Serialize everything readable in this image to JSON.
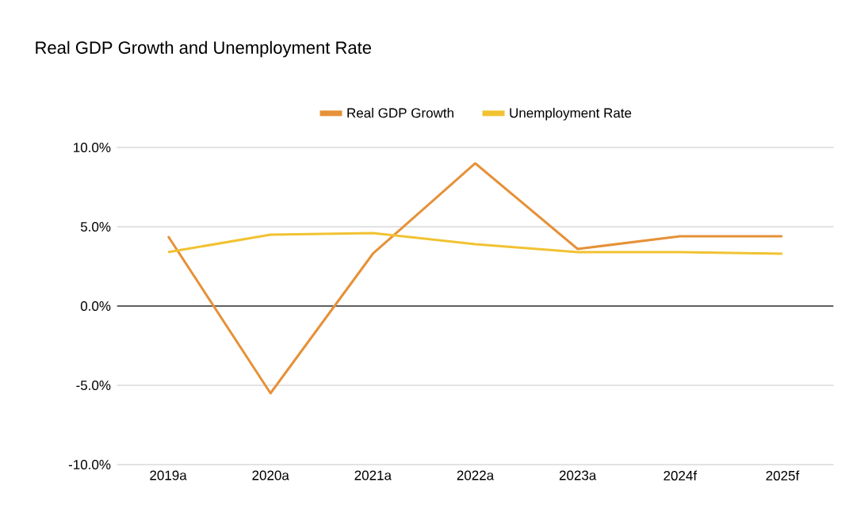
{
  "chart_data": {
    "type": "line",
    "title": "Real GDP Growth and Unemployment Rate",
    "categories": [
      "2019a",
      "2020a",
      "2021a",
      "2022a",
      "2023a",
      "2024f",
      "2025f"
    ],
    "series": [
      {
        "name": "Real GDP Growth",
        "color": "#e69138",
        "values": [
          4.4,
          -5.5,
          3.3,
          9.0,
          3.6,
          4.4,
          4.4
        ]
      },
      {
        "name": "Unemployment Rate",
        "color": "#f1c232",
        "values": [
          3.4,
          4.5,
          4.6,
          3.9,
          3.4,
          3.4,
          3.3
        ]
      }
    ],
    "ylim": [
      -10,
      10
    ],
    "yticks": [
      {
        "value": -10,
        "label": "-10.0%"
      },
      {
        "value": -5,
        "label": "-5.0%"
      },
      {
        "value": 0,
        "label": "0.0%"
      },
      {
        "value": 5,
        "label": "5.0%"
      },
      {
        "value": 10,
        "label": "10.0%"
      }
    ],
    "ref_lines": [
      {
        "axis": "y",
        "value": 0,
        "color": "#333333"
      }
    ],
    "grid": "y",
    "legend": "top",
    "marker": "none",
    "line_style": "solid"
  }
}
